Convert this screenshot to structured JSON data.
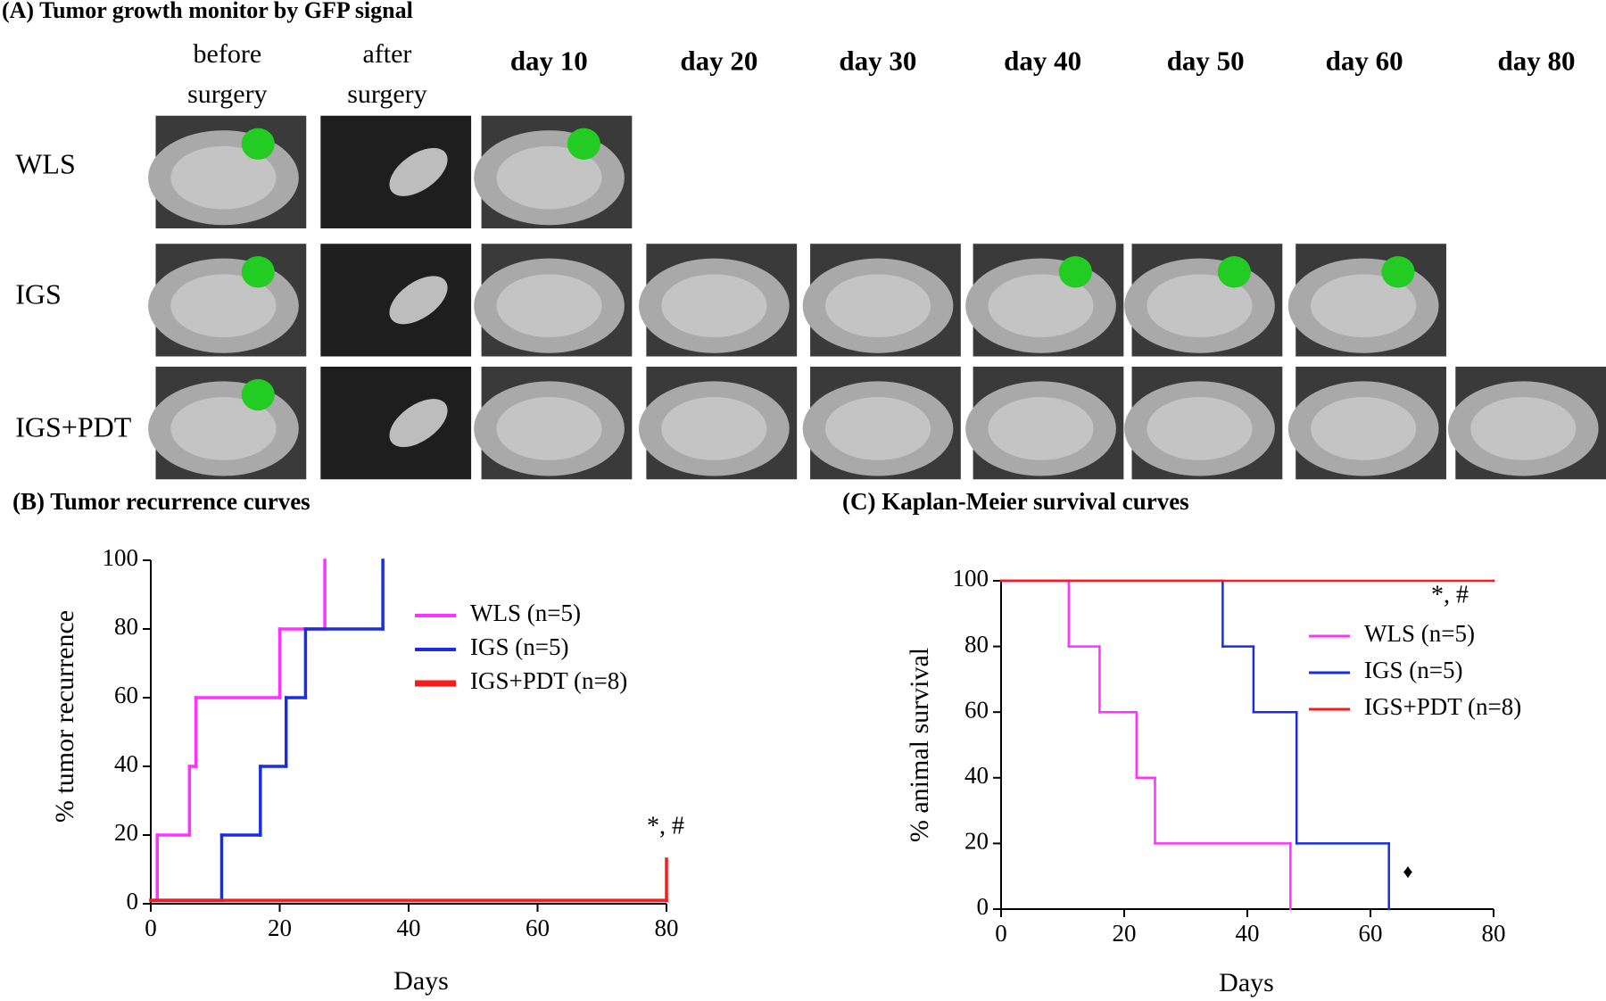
{
  "panel_a": {
    "title": "(A) Tumor growth monitor by GFP signal",
    "columns": [
      [
        "before",
        "surgery"
      ],
      [
        "after",
        "surgery"
      ],
      [
        "day 10"
      ],
      [
        "day 20"
      ],
      [
        "day 30"
      ],
      [
        "day 40"
      ],
      [
        "day 50"
      ],
      [
        "day 60"
      ],
      [
        "day 80"
      ]
    ],
    "rows": [
      "WLS",
      "IGS",
      "IGS+PDT"
    ]
  },
  "chart_data": [
    {
      "type": "step",
      "title": "(B) Tumor recurrence curves",
      "xlabel": "Days",
      "ylabel": "% tumor recurrence",
      "xlim": [
        0,
        80
      ],
      "ylim": [
        0,
        100
      ],
      "xticks": [
        0,
        20,
        40,
        60,
        80
      ],
      "yticks": [
        0,
        20,
        40,
        60,
        80,
        100
      ],
      "series": [
        {
          "name": "WLS (n=5)",
          "color": "#ff33ff",
          "x": [
            0,
            1,
            6,
            7,
            20,
            27
          ],
          "values": [
            1,
            20,
            40,
            60,
            80,
            100
          ]
        },
        {
          "name": "IGS (n=5)",
          "color": "#1a2ee0",
          "x": [
            0,
            11,
            17,
            21,
            24,
            36
          ],
          "values": [
            1,
            20,
            40,
            60,
            80,
            100
          ]
        },
        {
          "name": "IGS+PDT (n=8)",
          "color": "#ff1a1a",
          "x": [
            0,
            80,
            80
          ],
          "values": [
            1,
            1,
            13
          ]
        }
      ],
      "annotations": [
        "*, #"
      ]
    },
    {
      "type": "step",
      "title": "(C) Kaplan-Meier survival curves",
      "xlabel": "Days",
      "ylabel": "% animal survival",
      "xlim": [
        0,
        80
      ],
      "ylim": [
        0,
        100
      ],
      "xticks": [
        0,
        20,
        40,
        60,
        80
      ],
      "yticks": [
        0,
        20,
        40,
        60,
        80,
        100
      ],
      "series": [
        {
          "name": "WLS (n=5)",
          "color": "#ff33ff",
          "x": [
            0,
            11,
            16,
            22,
            25,
            47
          ],
          "values": [
            100,
            80,
            60,
            40,
            20,
            0
          ]
        },
        {
          "name": "IGS (n=5)",
          "color": "#1a2ee0",
          "x": [
            0,
            36,
            41,
            48,
            63
          ],
          "values": [
            100,
            80,
            60,
            20,
            0
          ]
        },
        {
          "name": "IGS+PDT (n=8)",
          "color": "#ff1a1a",
          "x": [
            0,
            80
          ],
          "values": [
            100,
            100
          ]
        }
      ],
      "annotations": [
        "*, #",
        "♦"
      ]
    }
  ]
}
